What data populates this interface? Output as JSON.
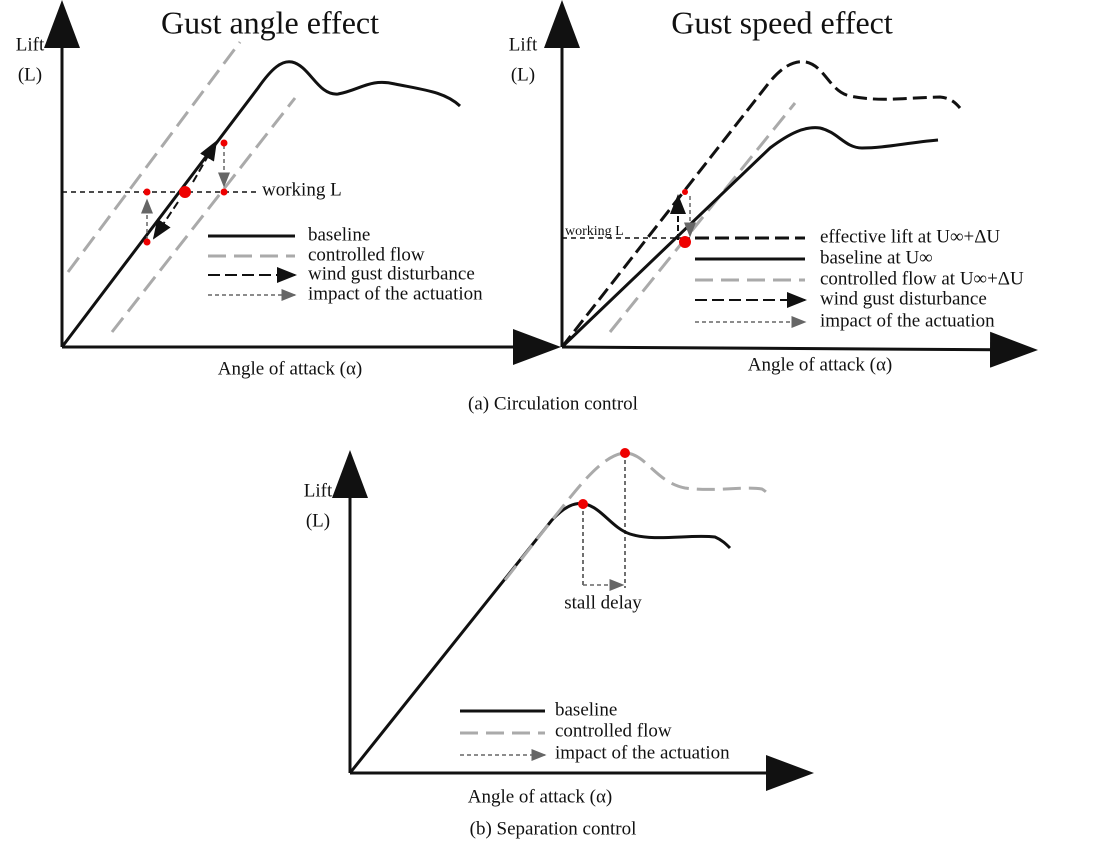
{
  "panel_a": {
    "caption": "(a) Circulation control",
    "left": {
      "title": "Gust angle effect",
      "y_label": [
        "Lift",
        "(L)"
      ],
      "x_label": "Angle of attack (α)",
      "annotation": "working L",
      "legend": [
        "baseline",
        "controlled flow",
        "wind gust disturbance",
        "impact of the actuation"
      ]
    },
    "right": {
      "title": "Gust speed effect",
      "y_label": [
        "Lift",
        "(L)"
      ],
      "x_label": "Angle of attack (α)",
      "annotation": "working L",
      "legend": [
        "effective lift at U∞+ΔU",
        "baseline at U∞",
        "controlled flow at U∞+ΔU",
        "wind gust disturbance",
        "impact of the actuation"
      ]
    }
  },
  "panel_b": {
    "caption": "(b) Separation control",
    "y_label": [
      "Lift",
      "(L)"
    ],
    "x_label": "Angle of attack (α)",
    "annotation": "stall delay",
    "legend": [
      "baseline",
      "controlled flow",
      "impact of the actuation"
    ]
  }
}
